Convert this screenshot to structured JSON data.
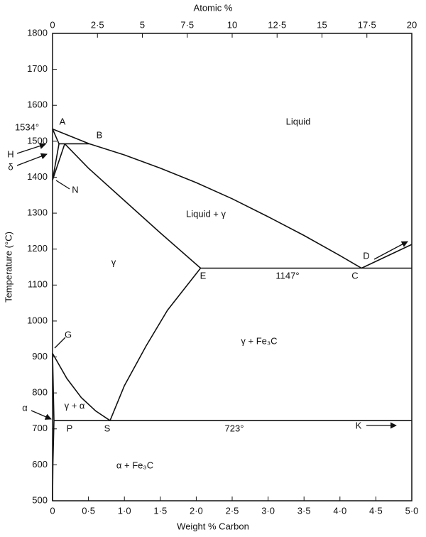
{
  "chart_data": {
    "type": "line",
    "x_label": "Weight % Carbon",
    "y_label": "Temperature (°C)",
    "x2_label": "Atomic %",
    "xlim": [
      0,
      5
    ],
    "ylim": [
      500,
      1800
    ],
    "x2lim": [
      0,
      20
    ],
    "xticks": [
      0,
      {
        "value": 0.5,
        "label": "0·5"
      },
      {
        "value": 1,
        "label": "1·0"
      },
      {
        "value": 1.5,
        "label": "1·5"
      },
      {
        "value": 2,
        "label": "2·0"
      },
      {
        "value": 2.5,
        "label": "2·5"
      },
      {
        "value": 3,
        "label": "3·0"
      },
      {
        "value": 3.5,
        "label": "3·5"
      },
      {
        "value": 4,
        "label": "4·0"
      },
      {
        "value": 4.5,
        "label": "4·5"
      },
      {
        "value": 5,
        "label": "5·0"
      }
    ],
    "x2ticks": [
      0,
      {
        "value": 2.5,
        "label": "2·5"
      },
      5,
      {
        "value": 7.5,
        "label": "7·5"
      },
      10,
      {
        "value": 12.5,
        "label": "12·5"
      },
      15,
      {
        "value": 17.5,
        "label": "17·5"
      },
      20
    ],
    "yticks": [
      500,
      600,
      700,
      800,
      900,
      1000,
      1100,
      1200,
      1300,
      1400,
      1500,
      1600,
      1700,
      1800
    ],
    "color": "#111111",
    "series": [
      {
        "x": [
          0,
          0.51,
          1.0,
          1.5,
          2.0,
          2.5,
          3.0,
          3.5,
          4.0,
          4.3
        ],
        "values": [
          1534,
          1493,
          1462,
          1425,
          1385,
          1340,
          1290,
          1238,
          1182,
          1147
        ]
      },
      {
        "x": [
          4.3,
          5.0
        ],
        "values": [
          1147,
          1213
        ]
      },
      {
        "x": [
          0.09,
          0.51
        ],
        "values": [
          1493,
          1493
        ]
      },
      {
        "x": [
          0,
          0.09
        ],
        "values": [
          1534,
          1493
        ]
      },
      {
        "x": [
          0.09,
          0
        ],
        "values": [
          1493,
          1392
        ]
      },
      {
        "x": [
          0.17,
          0
        ],
        "values": [
          1493,
          1392
        ]
      },
      {
        "x": [
          0.17,
          0.5,
          1.0,
          1.5,
          2.06
        ],
        "values": [
          1493,
          1425,
          1335,
          1245,
          1147
        ]
      },
      {
        "x": [
          2.06,
          5.0
        ],
        "values": [
          1147,
          1147
        ]
      },
      {
        "x": [
          0.8,
          1.0,
          1.3,
          1.6,
          2.06
        ],
        "values": [
          723,
          820,
          930,
          1030,
          1147
        ]
      },
      {
        "x": [
          0,
          0.2,
          0.4,
          0.6,
          0.8
        ],
        "values": [
          910,
          840,
          787,
          750,
          723
        ]
      },
      {
        "x": [
          0,
          0.02
        ],
        "values": [
          910,
          723
        ]
      },
      {
        "x": [
          0.02,
          5.0
        ],
        "values": [
          723,
          723
        ]
      },
      {
        "x": [
          0.02,
          0.005,
          0
        ],
        "values": [
          723,
          600,
          500
        ]
      }
    ],
    "annotations": [
      "1534°",
      "A",
      "B",
      "Liquid",
      "H",
      "δ",
      "N",
      "Liquid + γ",
      "γ",
      "E",
      "1147°",
      "C",
      "D",
      "G",
      "γ + Fe₃C",
      "γ + α",
      "α",
      "P",
      "S",
      "723°",
      "K",
      "α + Fe₃C"
    ]
  }
}
